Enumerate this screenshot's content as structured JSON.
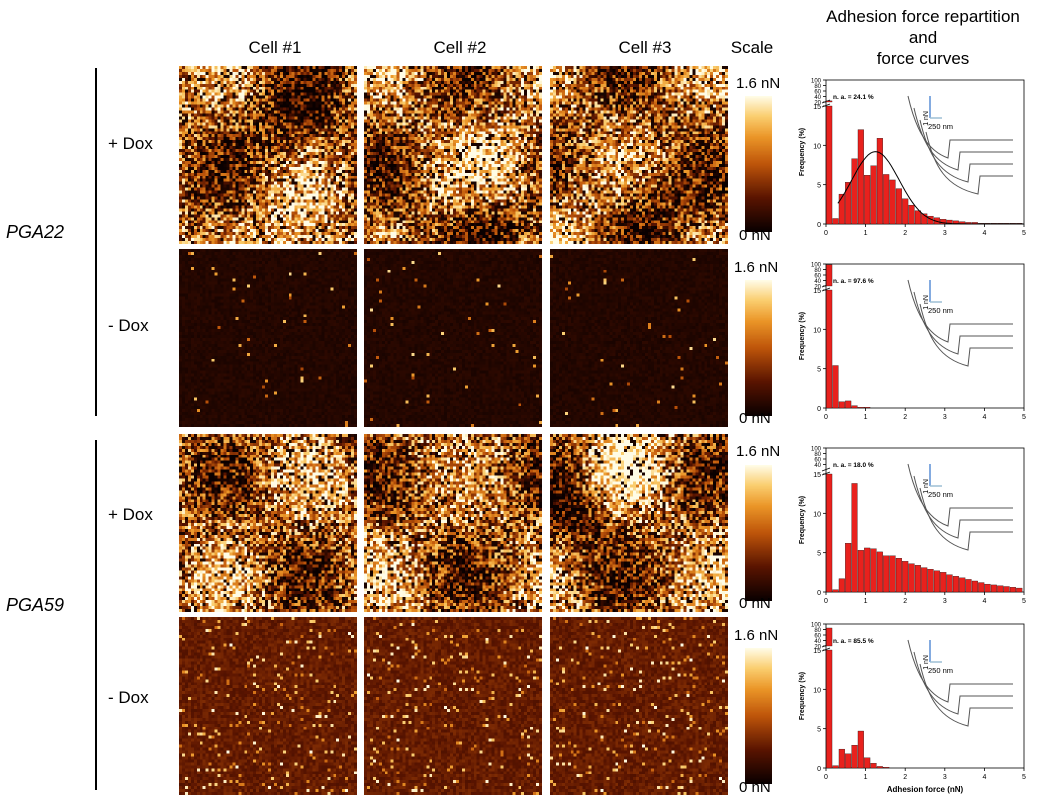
{
  "columns": {
    "cell1": "Cell #1",
    "cell2": "Cell #2",
    "cell3": "Cell #3",
    "scale": "Scale"
  },
  "right_title": {
    "line1": "Adhesion force repartition",
    "line2": "and",
    "line3": "force curves"
  },
  "strains": {
    "a": "PGA22",
    "b": "PGA59"
  },
  "conditions": {
    "plus": "+ Dox",
    "minus": "- Dox"
  },
  "scale": {
    "max": "1.6 nN",
    "min": "0 nN"
  },
  "colors": {
    "bar": "#e8211d",
    "curve": "#555555",
    "fit": "#000000"
  },
  "chart_data": [
    {
      "type": "bar",
      "panel": "PGA22 + Dox",
      "annotation": "n. a. = 24.1 %",
      "ylabel": "Frequency (%)",
      "xlabel": "",
      "xlim": [
        0,
        5
      ],
      "ylim_lower": [
        0,
        15
      ],
      "ylim_upper": [
        20,
        100
      ],
      "yticks_lower": [
        "0",
        "5",
        "10",
        "15"
      ],
      "yticks_upper": [
        "20",
        "40",
        "60",
        "80",
        "100"
      ],
      "xticks": [
        "0",
        "1",
        "2",
        "3",
        "4",
        "5"
      ],
      "bin_width": 0.16,
      "bins_start": [
        0.0,
        0.16,
        0.32,
        0.48,
        0.64,
        0.8,
        0.96,
        1.12,
        1.28,
        1.44,
        1.6,
        1.76,
        1.92,
        2.08,
        2.24,
        2.4,
        2.56,
        2.72,
        2.88,
        3.04,
        3.2,
        3.36,
        3.52,
        3.68,
        3.84,
        4.0,
        4.16,
        4.32,
        4.48,
        4.64,
        4.8
      ],
      "values": [
        24.1,
        0.7,
        3.8,
        5.3,
        8.3,
        12.0,
        6.2,
        7.4,
        10.9,
        6.3,
        5.6,
        4.5,
        3.2,
        2.4,
        1.7,
        1.3,
        1.0,
        0.8,
        0.6,
        0.5,
        0.4,
        0.3,
        0.2,
        0.2,
        0.1,
        0.1,
        0.1,
        0.1,
        0.1,
        0.1,
        0.1
      ],
      "fit": {
        "type": "gaussian",
        "peak": 9.2,
        "center": 1.25,
        "sigma": 0.6,
        "xrange": [
          0.3,
          5.0
        ]
      },
      "inset": {
        "scale_y": "1 nN",
        "scale_x": "250 nm",
        "curves": 4
      }
    },
    {
      "type": "bar",
      "panel": "PGA22 - Dox",
      "annotation": "n. a. = 97.6 %",
      "ylabel": "Frequency (%)",
      "xlabel": "",
      "xlim": [
        0,
        5
      ],
      "ylim_lower": [
        0,
        15
      ],
      "ylim_upper": [
        20,
        100
      ],
      "yticks_lower": [
        "0",
        "5",
        "10",
        "15"
      ],
      "yticks_upper": [
        "20",
        "40",
        "60",
        "80",
        "100"
      ],
      "xticks": [
        "0",
        "1",
        "2",
        "3",
        "4",
        "5"
      ],
      "bin_width": 0.16,
      "bins_start": [
        0.0,
        0.16,
        0.32,
        0.48,
        0.64,
        0.8,
        0.96
      ],
      "values": [
        97.6,
        5.4,
        0.8,
        0.9,
        0.3,
        0.1,
        0.1
      ],
      "inset": {
        "scale_y": "1 nN",
        "scale_x": "250 nm",
        "curves": 3
      }
    },
    {
      "type": "bar",
      "panel": "PGA59 + Dox",
      "annotation": "n. a. = 18.0 %",
      "ylabel": "Frequency (%)",
      "xlabel": "",
      "xlim": [
        0,
        5
      ],
      "ylim_lower": [
        0,
        15
      ],
      "ylim_upper": [
        20,
        100
      ],
      "yticks_lower": [
        "0",
        "5",
        "10",
        "15"
      ],
      "yticks_upper": [
        "40",
        "60",
        "80",
        "100"
      ],
      "xticks": [
        "0",
        "1",
        "2",
        "3",
        "4",
        "5"
      ],
      "bin_width": 0.16,
      "bins_start": [
        0.0,
        0.16,
        0.32,
        0.48,
        0.64,
        0.8,
        0.96,
        1.12,
        1.28,
        1.44,
        1.6,
        1.76,
        1.92,
        2.08,
        2.24,
        2.4,
        2.56,
        2.72,
        2.88,
        3.04,
        3.2,
        3.36,
        3.52,
        3.68,
        3.84,
        4.0,
        4.16,
        4.32,
        4.48,
        4.64,
        4.8
      ],
      "values": [
        18.0,
        0.3,
        1.7,
        6.2,
        13.8,
        5.3,
        5.6,
        5.5,
        5.1,
        4.6,
        4.6,
        4.3,
        3.9,
        3.6,
        3.4,
        3.1,
        2.9,
        2.7,
        2.5,
        2.2,
        2.0,
        1.8,
        1.6,
        1.4,
        1.2,
        1.0,
        0.9,
        0.8,
        0.7,
        0.6,
        0.5
      ],
      "inset": {
        "scale_y": "1 nN",
        "scale_x": "250 nm",
        "curves": 3
      }
    },
    {
      "type": "bar",
      "panel": "PGA59 - Dox",
      "annotation": "n. a. = 85.5 %",
      "ylabel": "Frequency (%)",
      "xlabel": "Adhesion force (nN)",
      "xlim": [
        0,
        5
      ],
      "ylim_lower": [
        0,
        15
      ],
      "ylim_upper": [
        20,
        100
      ],
      "yticks_lower": [
        "0",
        "5",
        "10",
        "15"
      ],
      "yticks_upper": [
        "20",
        "40",
        "60",
        "80",
        "100"
      ],
      "xticks": [
        "0",
        "1",
        "2",
        "3",
        "4",
        "5"
      ],
      "bin_width": 0.16,
      "bins_start": [
        0.0,
        0.16,
        0.32,
        0.48,
        0.64,
        0.8,
        0.96,
        1.12,
        1.28,
        1.44
      ],
      "values": [
        85.5,
        0.3,
        2.4,
        1.8,
        2.9,
        4.7,
        1.3,
        0.6,
        0.2,
        0.1
      ],
      "inset": {
        "scale_y": "1 nN",
        "scale_x": "250 nm",
        "curves": 3
      }
    }
  ],
  "maps": [
    {
      "row": "PGA22 + Dox",
      "cells": [
        "Cell #1",
        "Cell #2",
        "Cell #3"
      ],
      "level": "high",
      "scale_max_nN": 1.6
    },
    {
      "row": "PGA22 - Dox",
      "cells": [
        "Cell #1",
        "Cell #2",
        "Cell #3"
      ],
      "level": "sparse",
      "scale_max_nN": 1.6
    },
    {
      "row": "PGA59 + Dox",
      "cells": [
        "Cell #1",
        "Cell #2",
        "Cell #3"
      ],
      "level": "high",
      "scale_max_nN": 1.6
    },
    {
      "row": "PGA59 - Dox",
      "cells": [
        "Cell #1",
        "Cell #2",
        "Cell #3"
      ],
      "level": "low",
      "scale_max_nN": 1.6
    }
  ]
}
